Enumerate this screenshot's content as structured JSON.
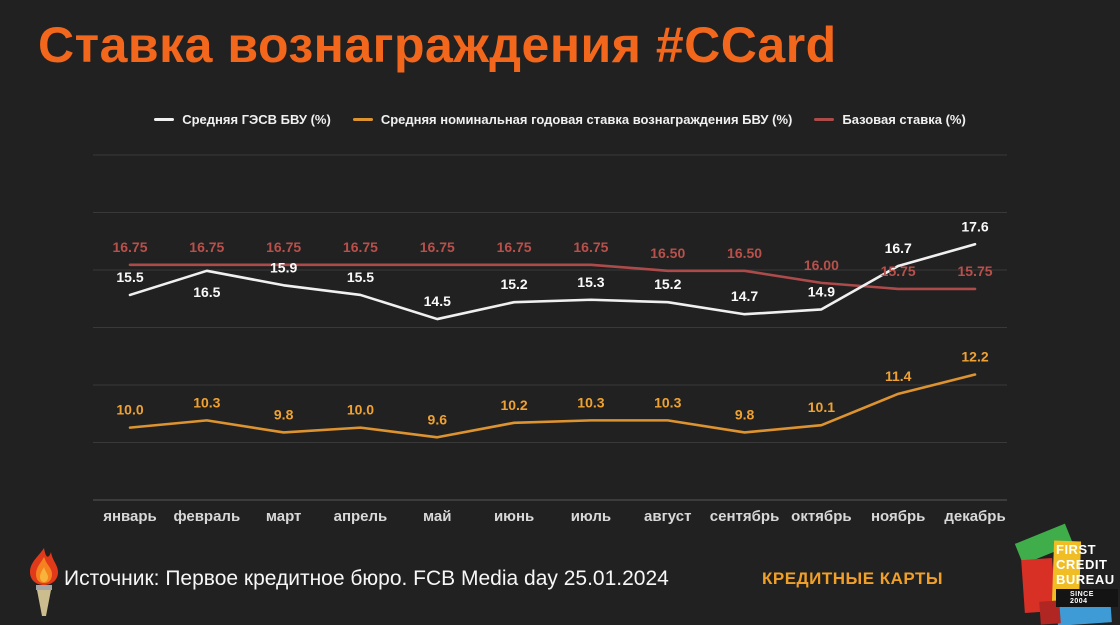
{
  "title": "Ставка вознаграждения #CCard",
  "chart_data": {
    "type": "line",
    "categories": [
      "январь",
      "февраль",
      "март",
      "апрель",
      "май",
      "июнь",
      "июль",
      "август",
      "сентябрь",
      "октябрь",
      "ноябрь",
      "декабрь"
    ],
    "series": [
      {
        "name": "Средняя ГЭСВ БВУ (%)",
        "color": "#f0f0f0",
        "label_color": "#fafafa",
        "values": [
          15.5,
          16.5,
          15.9,
          15.5,
          14.5,
          15.2,
          15.3,
          15.2,
          14.7,
          14.9,
          16.7,
          17.6
        ],
        "labels": [
          "15.5",
          "16.5",
          "15.9",
          "15.5",
          "14.5",
          "15.2",
          "15.3",
          "15.2",
          "14.7",
          "14.9",
          "16.7",
          "17.6"
        ]
      },
      {
        "name": "Средняя номинальная годовая ставка вознаграждения БВУ (%)",
        "color": "#dd9330",
        "label_color": "#efa233",
        "values": [
          10.0,
          10.3,
          9.8,
          10.0,
          9.6,
          10.2,
          10.3,
          10.3,
          9.8,
          10.1,
          11.4,
          12.2
        ],
        "labels": [
          "10.0",
          "10.3",
          "9.8",
          "10.0",
          "9.6",
          "10.2",
          "10.3",
          "10.3",
          "9.8",
          "10.1",
          "11.4",
          "12.2"
        ]
      },
      {
        "name": "Базовая ставка (%)",
        "color": "#ad4b4b",
        "label_color": "#b8504b",
        "values": [
          16.75,
          16.75,
          16.75,
          16.75,
          16.75,
          16.75,
          16.75,
          16.5,
          16.5,
          16.0,
          15.75,
          15.75
        ],
        "labels": [
          "16.75",
          "16.75",
          "16.75",
          "16.75",
          "16.75",
          "16.75",
          "16.75",
          "16.50",
          "16.50",
          "16.00",
          "15.75",
          "15.75"
        ]
      }
    ],
    "ylim": [
      7,
      21.3
    ],
    "grid": true,
    "legend_position": "top",
    "xlabel": "",
    "ylabel": ""
  },
  "footer": {
    "source": "Источник: Первое кредитное бюро. FCB Media day 25.01.2024",
    "category_label": "КРЕДИТНЫЕ КАРТЫ",
    "logo": {
      "line1": "FIRST",
      "line2": "CREDIT",
      "line3": "BUREAU",
      "since": "SINCE 2004"
    }
  },
  "colors": {
    "background": "#212121",
    "title_orange": "#f2671c",
    "category_gold": "#f0a028",
    "gridline": "#393939",
    "axis_line": "#575757"
  }
}
